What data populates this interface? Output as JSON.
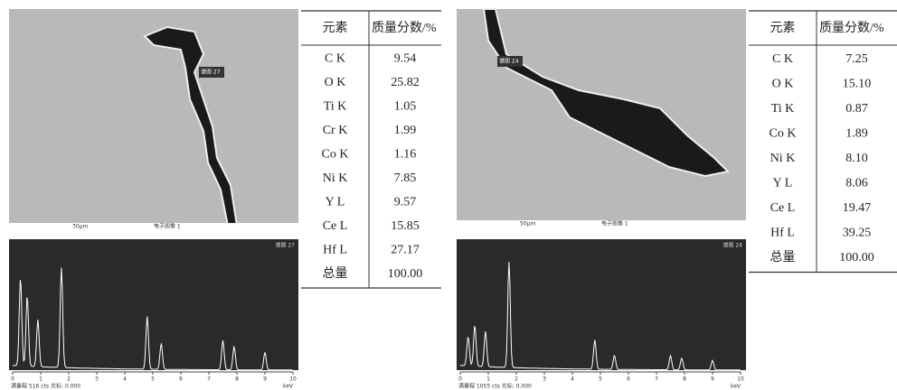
{
  "panels": [
    {
      "image": {
        "label": "谱图 27",
        "scale": "30μm",
        "caption": "电子图像 1"
      },
      "spectrum": {
        "label": "谱图 27",
        "footer": "满量程 516 cts 光标: 0.000",
        "unit": "keV",
        "axis_labels": [
          "0",
          "1",
          "2",
          "3",
          "4",
          "5",
          "6",
          "7",
          "8",
          "9",
          "10"
        ]
      },
      "table": {
        "header": [
          "元素",
          "质量分数/%"
        ],
        "rows": [
          [
            "C K",
            "9.54"
          ],
          [
            "O K",
            "25.82"
          ],
          [
            "Ti K",
            "1.05"
          ],
          [
            "Cr K",
            "1.99"
          ],
          [
            "Co K",
            "1.16"
          ],
          [
            "Ni K",
            "7.85"
          ],
          [
            "Y L",
            "9.57"
          ],
          [
            "Ce L",
            "15.85"
          ],
          [
            "Hf L",
            "27.17"
          ],
          [
            "总量",
            "100.00"
          ]
        ]
      }
    },
    {
      "image": {
        "label": "谱图 24",
        "scale": "50μm",
        "caption": "电子图像 1"
      },
      "spectrum": {
        "label": "谱图 24",
        "footer": "满量程 1055 cts 光标: 0.000",
        "unit": "keV",
        "axis_labels": [
          "0",
          "1",
          "2",
          "3",
          "4",
          "5",
          "6",
          "7",
          "8",
          "9",
          "10"
        ]
      },
      "table": {
        "header": [
          "元素",
          "质量分数/%"
        ],
        "rows": [
          [
            "C K",
            "7.25"
          ],
          [
            "O K",
            "15.10"
          ],
          [
            "Ti K",
            "0.87"
          ],
          [
            "Co K",
            "1.89"
          ],
          [
            "Ni K",
            "8.10"
          ],
          [
            "Y L",
            "8.06"
          ],
          [
            "Ce L",
            "19.47"
          ],
          [
            "Hf L",
            "39.25"
          ],
          [
            "总量",
            "100.00"
          ]
        ]
      }
    }
  ]
}
